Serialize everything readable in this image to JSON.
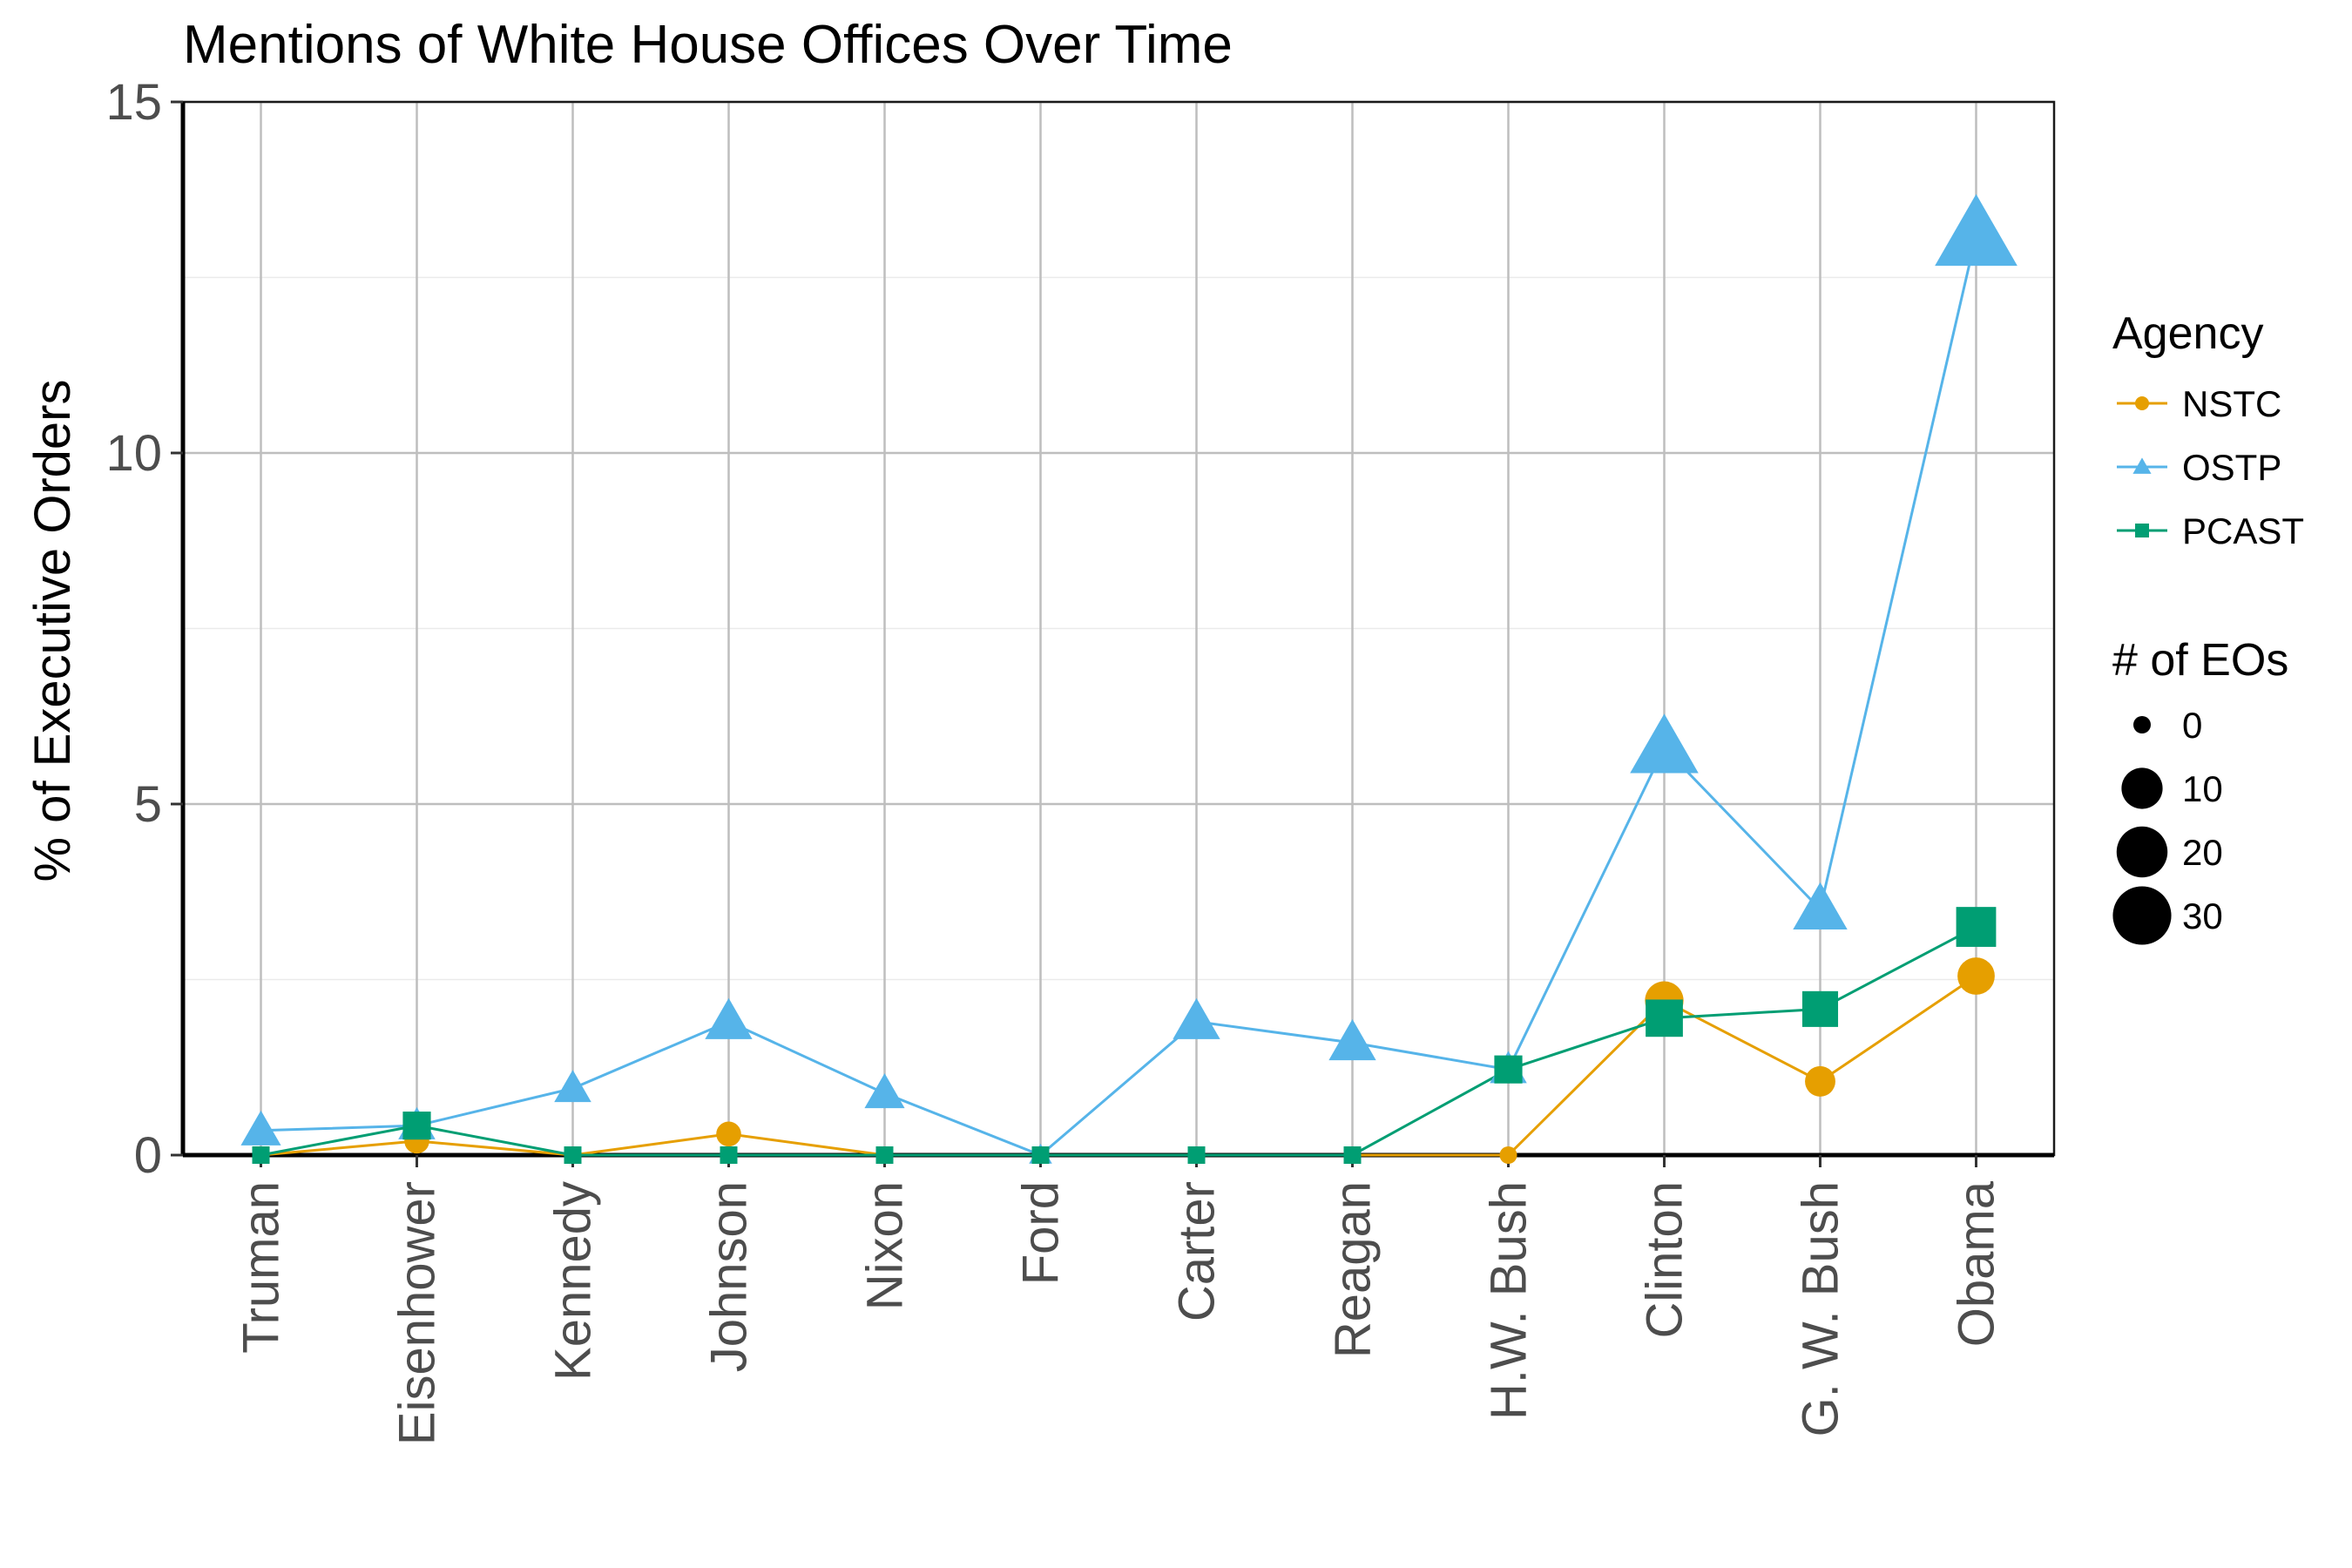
{
  "chart_data": {
    "type": "line",
    "title": "Mentions of White House Offices Over Time",
    "xlabel": "",
    "ylabel": "% of Executive Orders",
    "ylim": [
      0,
      15
    ],
    "yticks": [
      0,
      5,
      10,
      15
    ],
    "grid": true,
    "categories": [
      "Truman",
      "Eisenhower",
      "Kennedy",
      "Johnson",
      "Nixon",
      "Ford",
      "Carter",
      "Reagan",
      "H.W. Bush",
      "Clinton",
      "G. W. Bush",
      "Obama"
    ],
    "series": [
      {
        "name": "NSTC",
        "color": "#E69F00",
        "marker": "circle",
        "values": [
          0,
          0.2,
          0,
          0.3,
          0,
          0,
          0,
          0,
          0,
          2.2,
          1.05,
          2.55
        ],
        "eo_counts": [
          0,
          1,
          0,
          1,
          0,
          0,
          0,
          0,
          0,
          8,
          3,
          7
        ]
      },
      {
        "name": "OSTP",
        "color": "#56B4E9",
        "marker": "triangle",
        "values": [
          0.35,
          0.42,
          0.95,
          1.9,
          0.88,
          0,
          1.9,
          1.6,
          1.22,
          5.8,
          3.5,
          13.1
        ],
        "eo_counts": [
          3,
          2,
          2,
          6,
          3,
          0,
          6,
          6,
          2,
          21,
          10,
          36
        ]
      },
      {
        "name": "PCAST",
        "color": "#009E73",
        "marker": "square",
        "values": [
          0,
          0.42,
          0,
          0,
          0,
          0,
          0,
          0,
          1.22,
          1.95,
          2.08,
          3.25
        ],
        "eo_counts": [
          0,
          2,
          0,
          0,
          0,
          0,
          0,
          0,
          2,
          7,
          6,
          9
        ]
      }
    ],
    "legend": {
      "position": "right",
      "color_title": "Agency",
      "size_title": "# of EOs",
      "size_values": [
        "0",
        "10",
        "20",
        "30"
      ]
    }
  }
}
